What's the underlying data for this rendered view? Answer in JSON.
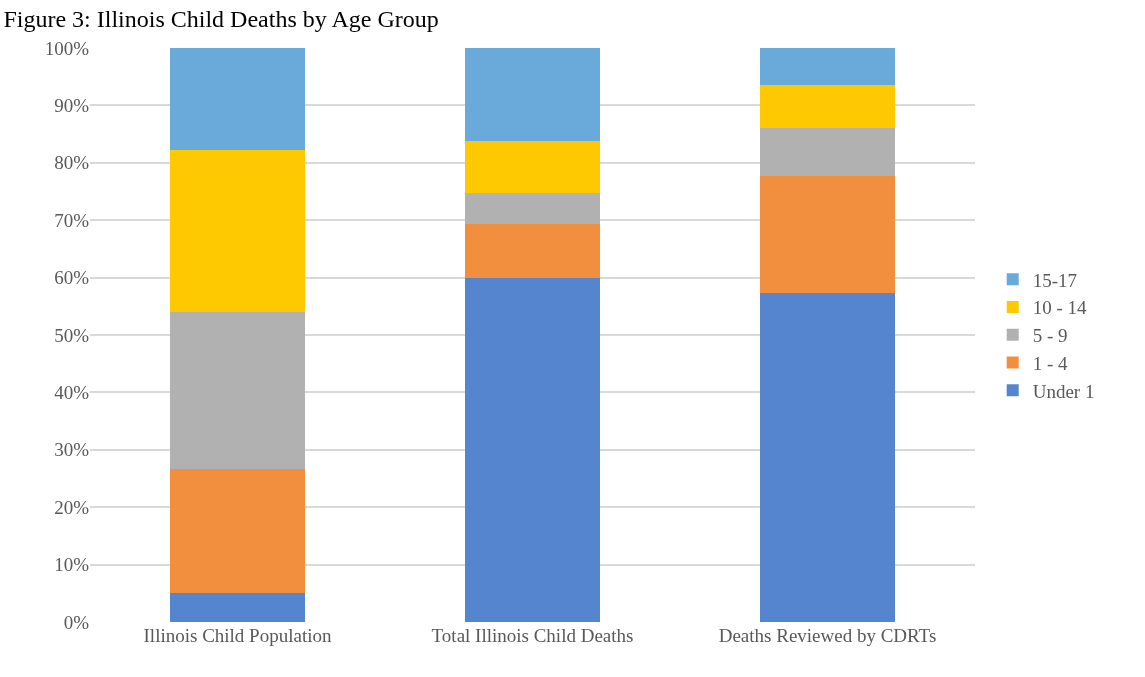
{
  "chart_data": {
    "type": "bar",
    "title": "Figure 3: Illinois Child Deaths by Age Group",
    "stacked": true,
    "categories": [
      "Illinois Child Population",
      "Total Illinois Child Deaths",
      "Deaths Reviewed by CDRTs"
    ],
    "series": [
      {
        "name": "Under 1",
        "color": "#5585cf",
        "values": [
          5.0,
          59.9,
          57.3
        ]
      },
      {
        "name": "1 - 4",
        "color": "#f18f3e",
        "values": [
          21.6,
          9.4,
          20.4
        ]
      },
      {
        "name": "5 - 9",
        "color": "#b1b1b1",
        "values": [
          27.4,
          5.5,
          8.3
        ]
      },
      {
        "name": "10 - 14",
        "color": "#fec900",
        "values": [
          28.2,
          9.0,
          7.5
        ]
      },
      {
        "name": "15-17",
        "color": "#6aaada",
        "values": [
          17.8,
          16.2,
          6.5
        ]
      }
    ],
    "ylim": [
      0,
      100
    ],
    "yticks": [
      {
        "value": 0,
        "label": "0%"
      },
      {
        "value": 10,
        "label": "10%"
      },
      {
        "value": 20,
        "label": "20%"
      },
      {
        "value": 30,
        "label": "30%"
      },
      {
        "value": 40,
        "label": "40%"
      },
      {
        "value": 50,
        "label": "50%"
      },
      {
        "value": 60,
        "label": "60%"
      },
      {
        "value": 70,
        "label": "70%"
      },
      {
        "value": 80,
        "label": "80%"
      },
      {
        "value": 90,
        "label": "90%"
      },
      {
        "value": 100,
        "label": "100%"
      }
    ],
    "grid": "y",
    "legend": "right"
  }
}
